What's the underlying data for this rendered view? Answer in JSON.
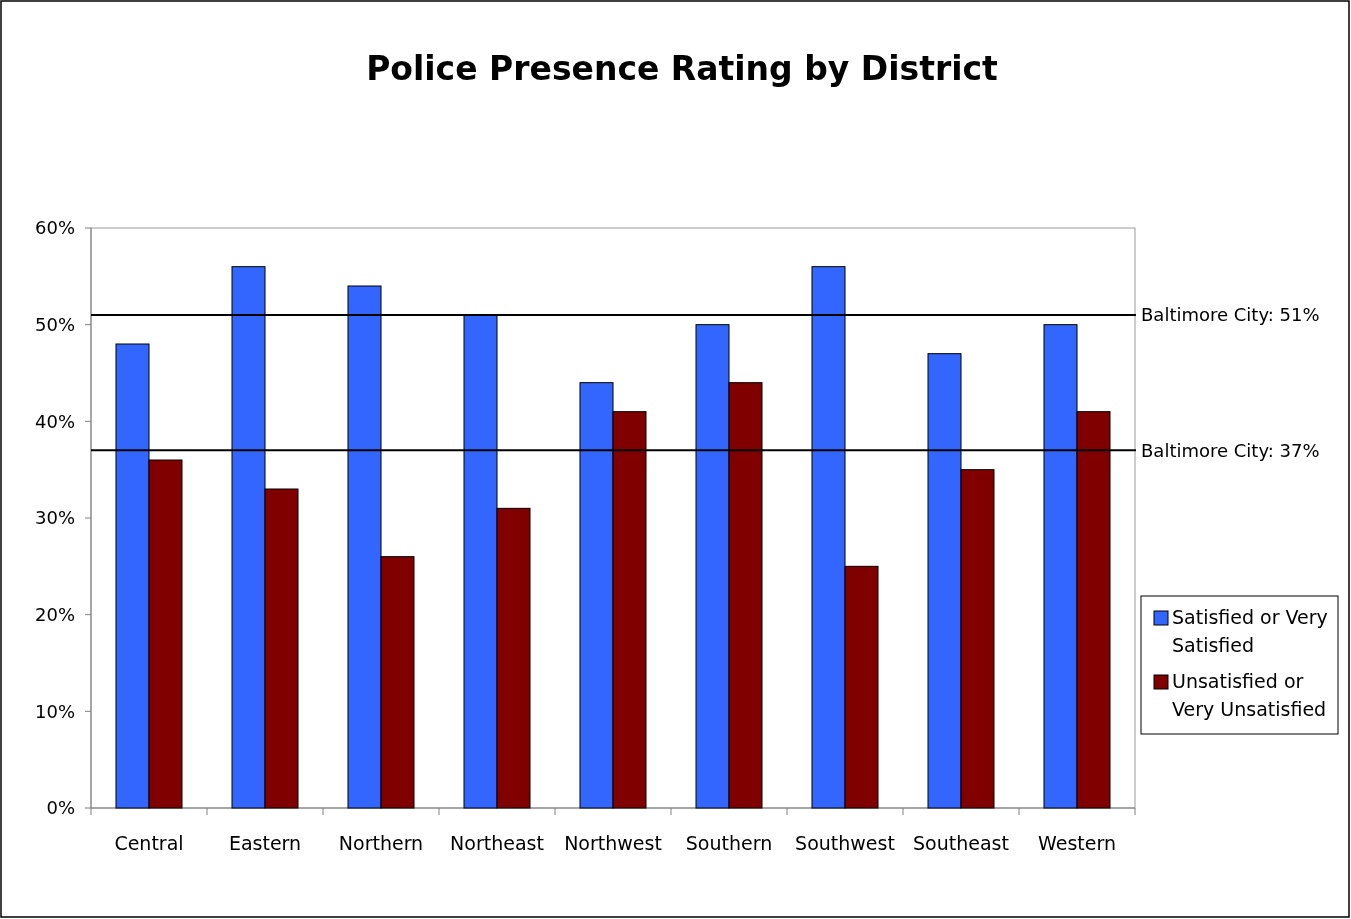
{
  "chart_data": {
    "type": "bar",
    "title": "Police Presence Rating by District",
    "categories": [
      "Central",
      "Eastern",
      "Northern",
      "Northeast",
      "Northwest",
      "Southern",
      "Southwest",
      "Southeast",
      "Western"
    ],
    "series": [
      {
        "name": "Satisfied or Very Satisfied",
        "color": "#3366ff",
        "values": [
          48,
          56,
          54,
          51,
          44,
          50,
          56,
          47,
          50
        ]
      },
      {
        "name": "Unsatisfied or Very Unsatisfied",
        "color": "#800000",
        "values": [
          36,
          33,
          26,
          31,
          41,
          44,
          25,
          35,
          41
        ]
      }
    ],
    "ylim": [
      0,
      60
    ],
    "yticks": [
      {
        "value": 0,
        "label": "0%"
      },
      {
        "value": 10,
        "label": "10%"
      },
      {
        "value": 20,
        "label": "20%"
      },
      {
        "value": 30,
        "label": "30%"
      },
      {
        "value": 40,
        "label": "40%"
      },
      {
        "value": 50,
        "label": "50%"
      },
      {
        "value": 60,
        "label": "60%"
      }
    ],
    "ref_lines": [
      {
        "axis": "y",
        "value": 51,
        "label": "Baltimore City: 51%",
        "color": "#000000"
      },
      {
        "axis": "y",
        "value": 37,
        "label": "Baltimore City:  37%",
        "color": "#000000"
      }
    ],
    "grid": false,
    "legend": "right"
  }
}
